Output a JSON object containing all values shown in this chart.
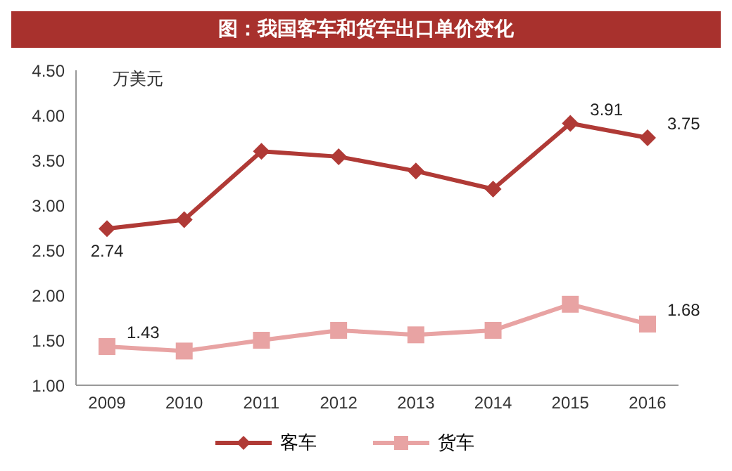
{
  "chart_data": {
    "type": "line",
    "title": "图：我国客车和货车出口单价变化",
    "ylabel": "万美元",
    "categories": [
      "2009",
      "2010",
      "2011",
      "2012",
      "2013",
      "2014",
      "2015",
      "2016"
    ],
    "series": [
      {
        "name": "客车",
        "color": "#b03a36",
        "marker": "diamond",
        "values": [
          2.74,
          2.84,
          3.6,
          3.54,
          3.38,
          3.18,
          3.91,
          3.75
        ],
        "value_labels": [
          "2.74",
          null,
          null,
          null,
          null,
          null,
          "3.91",
          "3.75"
        ]
      },
      {
        "name": "货车",
        "color": "#e8a3a3",
        "marker": "square",
        "values": [
          1.43,
          1.38,
          1.5,
          1.61,
          1.56,
          1.61,
          1.9,
          1.68
        ],
        "value_labels": [
          "1.43",
          null,
          null,
          null,
          null,
          null,
          null,
          "1.68"
        ]
      }
    ],
    "ylim": [
      1,
      4.5
    ],
    "yticks": [
      {
        "value": 1,
        "label": "1.00"
      },
      {
        "value": 1.5,
        "label": "1.50"
      },
      {
        "value": 2,
        "label": "2.00"
      },
      {
        "value": 2.5,
        "label": "2.50"
      },
      {
        "value": 3,
        "label": "3.00"
      },
      {
        "value": 3.5,
        "label": "3.50"
      },
      {
        "value": 4,
        "label": "4.00"
      },
      {
        "value": 4.5,
        "label": "4.50"
      }
    ],
    "grid": false,
    "legend": "bottom",
    "line_style": "solid"
  }
}
